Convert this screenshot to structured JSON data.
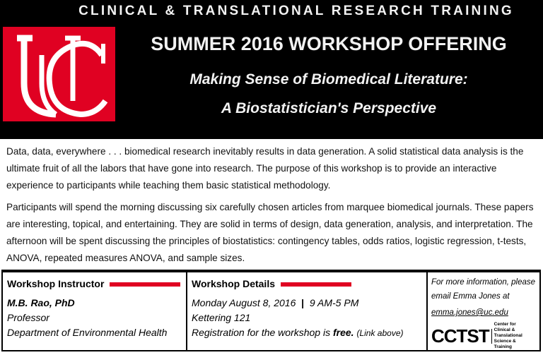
{
  "header": {
    "top_title": "CLINICAL & TRANSLATIONAL RESEARCH TRAINING",
    "logo_text": "UC",
    "headline": "SUMMER 2016 WORKSHOP OFFERING",
    "subtitle_line1": "Making Sense of Biomedical Literature:",
    "subtitle_line2": "A Biostatistician's Perspective",
    "colors": {
      "background": "#000000",
      "brand_red": "#e00122"
    }
  },
  "body": {
    "paragraph1": "Data, data, everywhere . . . biomedical research inevitably results in data generation. A solid statistical data analysis is the ultimate fruit of all the labors that have gone into research. The purpose of this workshop is to provide an interactive experience to participants while teaching them basic statistical methodology.",
    "paragraph2": "Participants will spend the morning discussing six carefully chosen articles from marquee biomedical journals. These papers are interesting, topical, and entertaining. They are solid in terms of design, data generation, analysis, and interpretation. The afternoon will be spent discussing the principles of biostatistics: contingency tables, odds ratios, logistic regression, t-tests, ANOVA, repeated measures ANOVA, and sample sizes."
  },
  "instructor": {
    "heading": "Workshop Instructor",
    "name": "M.B. Rao, PhD",
    "title": "Professor",
    "department": "Department of Environmental Health"
  },
  "details": {
    "heading": "Workshop Details",
    "date": "Monday August 8, 2016",
    "separator": "|",
    "time": "9 AM-5 PM",
    "location": "Kettering 121",
    "registration_prefix": "Registration for the workshop is ",
    "registration_free": "free.",
    "registration_link": "(Link above)"
  },
  "contact": {
    "line1": "For more information, please",
    "line2": "email  Emma Jones at",
    "email": "emma.jones@uc.edu",
    "cctst_logo": "CCTST",
    "cctst_tagline": "Center for Clinical & Translational Science & Training"
  }
}
